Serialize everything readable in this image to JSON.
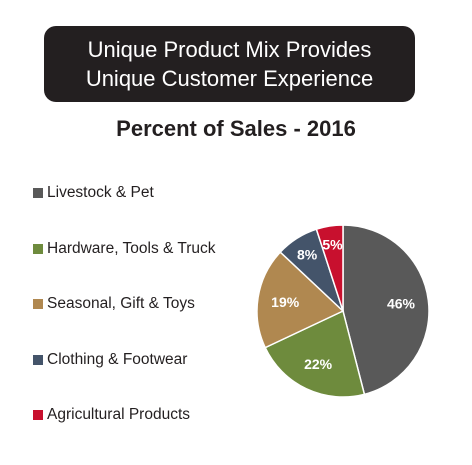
{
  "banner": {
    "line1": "Unique Product Mix Provides",
    "line2": "Unique Customer Experience"
  },
  "chart_data": {
    "type": "pie",
    "title": "Percent of Sales - 2016",
    "legend_position": "left",
    "slices": [
      {
        "name": "Livestock & Pet",
        "value": 46,
        "label": "46%",
        "color": "#595959"
      },
      {
        "name": "Hardware, Tools & Truck",
        "value": 22,
        "label": "22%",
        "color": "#6e8b3d"
      },
      {
        "name": "Seasonal, Gift & Toys",
        "value": 19,
        "label": "19%",
        "color": "#b08850"
      },
      {
        "name": "Clothing & Footwear",
        "value": 8,
        "label": "8%",
        "color": "#44546a"
      },
      {
        "name": "Agricultural Products",
        "value": 5,
        "label": "5%",
        "color": "#c8102e"
      }
    ]
  }
}
